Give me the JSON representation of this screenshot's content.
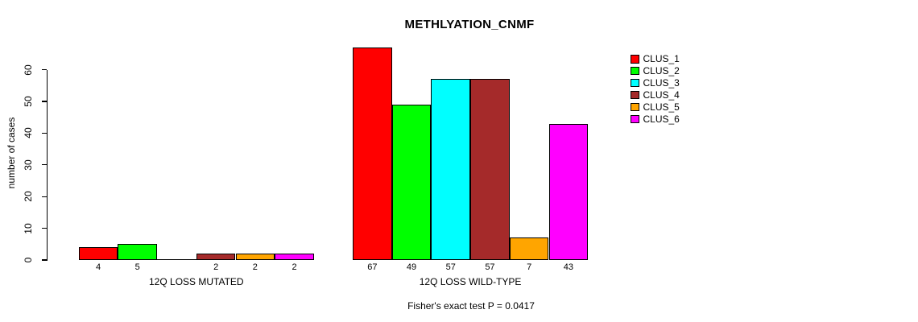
{
  "chart_data": {
    "type": "bar",
    "title": "METHLYATION_CNMF",
    "ylabel": "number of cases",
    "xlabel": "",
    "ylim": [
      0,
      60
    ],
    "yticks": [
      0,
      10,
      20,
      30,
      40,
      50,
      60
    ],
    "grid": false,
    "legend_position": "right",
    "categories": [
      "12Q LOSS MUTATED",
      "12Q LOSS WILD-TYPE"
    ],
    "series": [
      {
        "name": "CLUS_1",
        "color": "#FF0000",
        "values": [
          4,
          67
        ]
      },
      {
        "name": "CLUS_2",
        "color": "#00FF00",
        "values": [
          5,
          49
        ]
      },
      {
        "name": "CLUS_3",
        "color": "#00FFFF",
        "values": [
          0,
          57
        ]
      },
      {
        "name": "CLUS_4",
        "color": "#A52A2A",
        "values": [
          2,
          57
        ]
      },
      {
        "name": "CLUS_5",
        "color": "#FFA500",
        "values": [
          2,
          7
        ]
      },
      {
        "name": "CLUS_6",
        "color": "#FF00FF",
        "values": [
          2,
          43
        ]
      }
    ],
    "value_labels_note": "bar values printed under each bar; zero-value bars drawn as flat line with no label",
    "annotation": "Fisher's exact test P = 0.0417"
  }
}
